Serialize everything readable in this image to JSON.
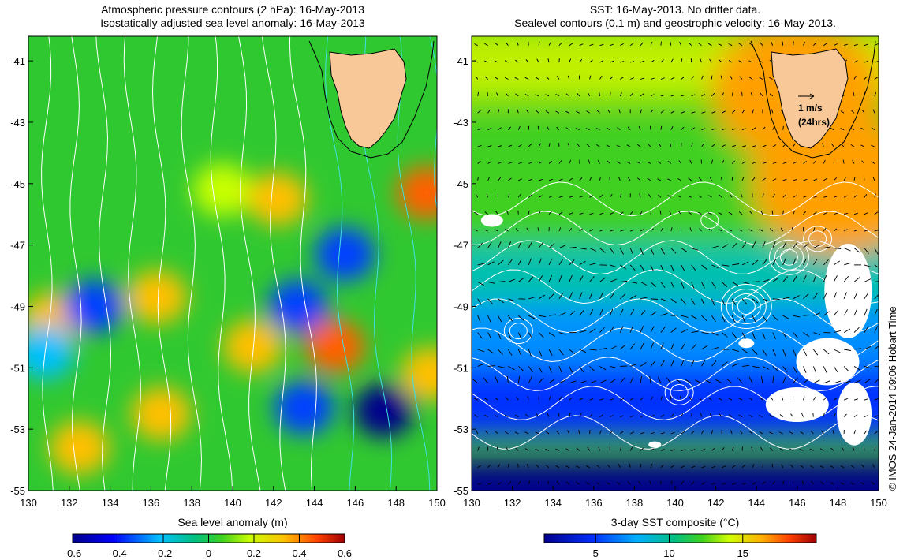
{
  "left_panel": {
    "title_line1": "Atmospheric pressure contours (2 hPa): 16-May-2013",
    "title_line2": "Isostatically adjusted sea level anomaly: 16-May-2013",
    "colorbar_label": "Sea level anomaly (m)",
    "colorbar_ticks": [
      "-0.6",
      "-0.4",
      "-0.2",
      "0",
      "0.2",
      "0.4",
      "0.6"
    ]
  },
  "right_panel": {
    "title_line1": "SST: 16-May-2013. No drifter data.",
    "title_line2": "Sealevel contours (0.1 m) and geostrophic velocity: 16-May-2013.",
    "colorbar_label": "3-day SST composite (°C)",
    "colorbar_ticks": [
      "5",
      "10",
      "15"
    ],
    "velocity_key_line1": "1 m/s",
    "velocity_key_line2": "(24hrs)"
  },
  "axes": {
    "x_ticks": [
      "130",
      "132",
      "134",
      "136",
      "138",
      "140",
      "142",
      "144",
      "146",
      "148",
      "150"
    ],
    "y_ticks": [
      "-41",
      "-43",
      "-45",
      "-47",
      "-49",
      "-51",
      "-53",
      "-55"
    ]
  },
  "credit": "© IMOS 24-Jan-2014 09:06 Hobart Time",
  "colors": {
    "land": "#f8c898",
    "contour_white": "#ffffff",
    "contour_cyan": "#40e0e0"
  },
  "map_data": {
    "lon_range": [
      130,
      150
    ],
    "lat_range": [
      -55,
      -40.2
    ],
    "sla_blobs": [
      {
        "lon": 131.2,
        "lat": -49.4,
        "value": 0.4
      },
      {
        "lon": 133.2,
        "lat": -49.0,
        "value": -0.25
      },
      {
        "lon": 136.3,
        "lat": -48.7,
        "value": 0.35
      },
      {
        "lon": 139.5,
        "lat": -45.2,
        "value": 0.25
      },
      {
        "lon": 142.2,
        "lat": -45.5,
        "value": 0.35
      },
      {
        "lon": 145.5,
        "lat": -47.3,
        "value": -0.3
      },
      {
        "lon": 143.2,
        "lat": -49.0,
        "value": -0.35
      },
      {
        "lon": 141.0,
        "lat": -50.3,
        "value": 0.4
      },
      {
        "lon": 145.0,
        "lat": -50.3,
        "value": 0.45
      },
      {
        "lon": 147.4,
        "lat": -52.4,
        "value": -0.45
      },
      {
        "lon": 149.5,
        "lat": -45.3,
        "value": 0.45
      },
      {
        "lon": 130.8,
        "lat": -50.5,
        "value": -0.2
      },
      {
        "lon": 132.5,
        "lat": -53.6,
        "value": 0.3
      },
      {
        "lon": 136.5,
        "lat": -52.5,
        "value": 0.3
      },
      {
        "lon": 143.5,
        "lat": -52.3,
        "value": -0.25
      },
      {
        "lon": 149.7,
        "lat": -51.2,
        "value": 0.3
      }
    ],
    "sst_bands": [
      {
        "lat": -41,
        "value": 12.5
      },
      {
        "lat": -44,
        "value": 11.5
      },
      {
        "lat": -46,
        "value": 10.5
      },
      {
        "lat": -48,
        "value": 8.5
      },
      {
        "lat": -50,
        "value": 7
      },
      {
        "lat": -52,
        "value": 5
      },
      {
        "lat": -55,
        "value": 3.5
      }
    ],
    "sst_warm_east": [
      {
        "lon": 146,
        "lat": -42,
        "value": 15
      },
      {
        "lon": 148,
        "lat": -45,
        "value": 14.5
      }
    ]
  }
}
